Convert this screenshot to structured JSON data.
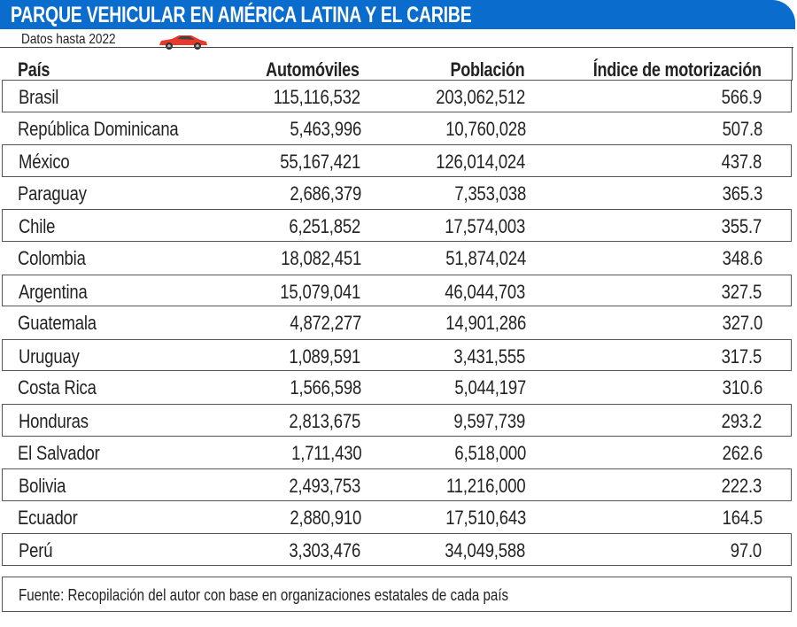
{
  "title": "PARQUE VEHICULAR EN AMÉRICA LATINA Y EL CARIBE",
  "subtitle": "Datos hasta 2022",
  "icons": {
    "car": "car-icon"
  },
  "colors": {
    "banner": "#0a6ccd",
    "car": "#e8392a"
  },
  "headers": [
    "País",
    "Automóviles",
    "Población",
    "Índice de motorización"
  ],
  "rows": [
    [
      "Brasil",
      "115,116,532",
      "203,062,512",
      "566.9"
    ],
    [
      "República Dominicana",
      "5,463,996",
      "10,760,028",
      "507.8"
    ],
    [
      "México",
      "55,167,421",
      "126,014,024",
      "437.8"
    ],
    [
      "Paraguay",
      "2,686,379",
      "7,353,038",
      "365.3"
    ],
    [
      "Chile",
      "6,251,852",
      "17,574,003",
      "355.7"
    ],
    [
      "Colombia",
      "18,082,451",
      "51,874,024",
      "348.6"
    ],
    [
      "Argentina",
      "15,079,041",
      "46,044,703",
      "327.5"
    ],
    [
      "Guatemala",
      "4,872,277",
      "14,901,286",
      "327.0"
    ],
    [
      "Uruguay",
      "1,089,591",
      "3,431,555",
      "317.5"
    ],
    [
      "Costa Rica",
      "1,566,598",
      "5,044,197",
      "310.6"
    ],
    [
      "Honduras",
      "2,813,675",
      "9,597,739",
      "293.2"
    ],
    [
      "El Salvador",
      "1,711,430",
      "6,518,000",
      "262.6"
    ],
    [
      "Bolivia",
      "2,493,753",
      "11,216,000",
      "222.3"
    ],
    [
      "Ecuador",
      "2,880,910",
      "17,510,643",
      "164.5"
    ],
    [
      "Perú",
      "3,303,476",
      "34,049,588",
      "97.0"
    ]
  ],
  "footer": "Fuente: Recopilación del autor con base en organizaciones estatales de cada país"
}
